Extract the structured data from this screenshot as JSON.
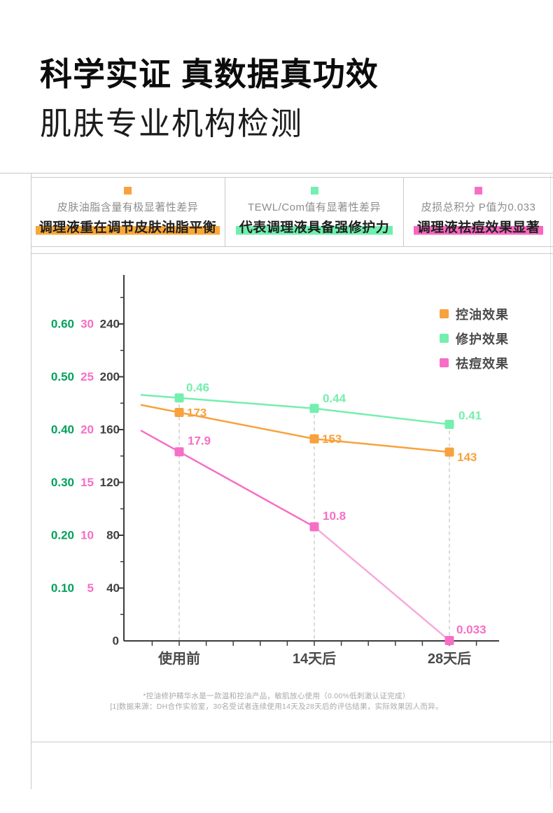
{
  "header": {
    "title": "科学实证 真数据真功效",
    "subtitle": "肌肤专业机构检测"
  },
  "annotations": [
    {
      "color": "#F7A23C",
      "note": "皮肤油脂含量有极显著性差异",
      "highlight_text": "调理液重在调节皮肤油脂平衡",
      "highlight_color": "#F9A838"
    },
    {
      "color": "#74EFAE",
      "note": "TEWL/Com值有显著性差异",
      "highlight_text": "代表调理液具备强修护力",
      "highlight_color": "#6FEFAC"
    },
    {
      "color": "#F76EC6",
      "note": "皮损总积分 P值为0.033",
      "highlight_text": "调理液祛痘效果显著",
      "highlight_color": "#F767C0"
    }
  ],
  "chart_data": {
    "type": "line",
    "categories": [
      "使用前",
      "14天后",
      "28天后"
    ],
    "series": [
      {
        "name": "控油效果",
        "color": "#F7A23C",
        "axis": "count",
        "values": [
          173,
          153,
          143
        ],
        "labels": [
          "173",
          "153",
          "143"
        ]
      },
      {
        "name": "修护效果",
        "color": "#74EFAE",
        "axis": "tewl",
        "values": [
          0.46,
          0.44,
          0.41
        ],
        "labels": [
          "0.46",
          "0.44",
          "0.41"
        ]
      },
      {
        "name": "祛痘效果",
        "color": "#F76EC6",
        "axis": "score",
        "values": [
          17.9,
          10.8,
          0.033
        ],
        "labels": [
          "17.9",
          "10.8",
          "0.033"
        ],
        "segment_colors": [
          "#F76EC6",
          "#F9A9DA"
        ]
      }
    ],
    "axes": {
      "tewl": {
        "color": "#00A25B",
        "max": 0.6,
        "ticks": [
          "0.10",
          "0.20",
          "0.30",
          "0.40",
          "0.50",
          "0.60"
        ]
      },
      "score": {
        "color": "#F76EC6",
        "max": 30,
        "ticks": [
          "5",
          "10",
          "15",
          "20",
          "25",
          "30"
        ]
      },
      "count": {
        "color": "#3F3F3F",
        "max": 240,
        "ticks": [
          "40",
          "80",
          "120",
          "160",
          "200",
          "240"
        ]
      }
    },
    "origin_label": "0",
    "axis_line_color": "#3C3C3C",
    "guide_color": "#CFCFCF",
    "category_label_color": "#4A4A4A",
    "legend_position": "top-right",
    "grid": "dashed vertical guides at each category"
  },
  "footnotes": [
    "*控油修护精华水是一款温和控油产品，敏肌放心使用（0.00%低刺激认证完成）",
    "[1]数据来源：DH合作实验室，30名受试者连续使用14天及28天后的评估结果，实际效果因人而异。"
  ]
}
